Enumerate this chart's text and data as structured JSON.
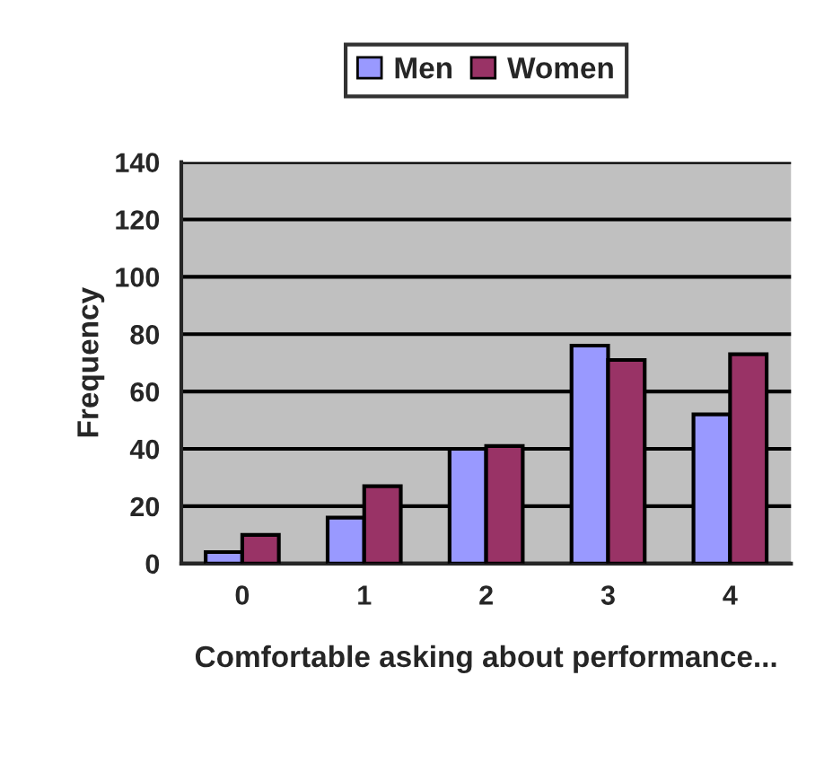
{
  "chart_data": {
    "type": "bar",
    "xlabel": "Comfortable asking about performance...",
    "ylabel": "Frequency",
    "categories": [
      "0",
      "1",
      "2",
      "3",
      "4"
    ],
    "series": [
      {
        "name": "Men",
        "color": "#9999ff",
        "values": [
          4,
          16,
          40,
          76,
          52
        ]
      },
      {
        "name": "Women",
        "color": "#993366",
        "values": [
          10,
          27,
          41,
          71,
          73
        ]
      }
    ],
    "ylim": [
      0,
      140
    ],
    "yticks": [
      0,
      20,
      40,
      60,
      80,
      100,
      120,
      140
    ],
    "grid": "y",
    "legend": "top"
  }
}
